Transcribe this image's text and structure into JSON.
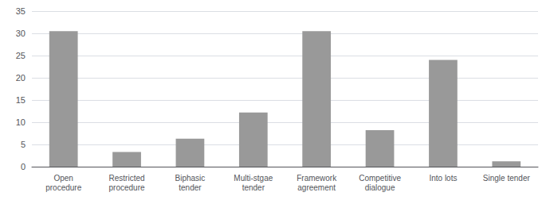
{
  "chart_data": {
    "type": "bar",
    "categories": [
      "Open\nprocedure",
      "Restricted\nprocedure",
      "Biphasic\ntender",
      "Multi-stgae\ntender",
      "Framework\nagreement",
      "Competitive\ndialogue",
      "Into lots",
      "Single tender"
    ],
    "values": [
      30.5,
      3.3,
      6.3,
      12.2,
      30.5,
      8.2,
      24.0,
      1.2
    ],
    "color": "#999999",
    "ylim": [
      0,
      35
    ],
    "yticks": [
      0,
      5,
      10,
      15,
      20,
      25,
      30,
      35
    ],
    "grid": true
  }
}
